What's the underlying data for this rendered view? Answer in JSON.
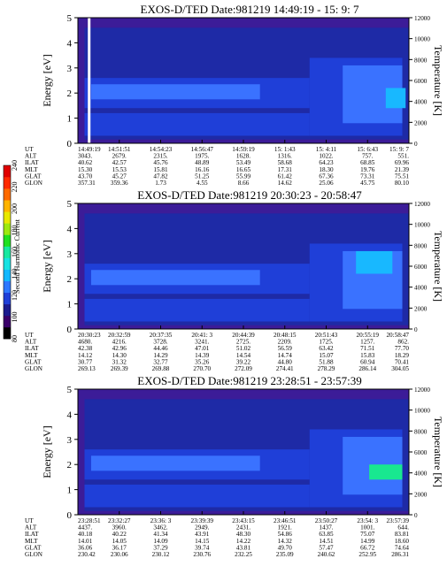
{
  "colorbar": {
    "label": "Second Harmonic Current",
    "ticks": [
      "80",
      "100",
      "120",
      "140",
      "160",
      "180",
      "200",
      "220",
      "240"
    ],
    "colors": [
      "#000000",
      "#3a0069",
      "#1b1b8e",
      "#1f3fd8",
      "#2e78ff",
      "#12b8ff",
      "#18e2e2",
      "#18e8a0",
      "#20e020",
      "#9ee810",
      "#e8e800",
      "#ffb400",
      "#ff6a00",
      "#ff2a00",
      "#e00000"
    ]
  },
  "chart_data": [
    {
      "type": "heatmap",
      "title": "EXOS-D/TED   Date:981219  14:49:19 - 15: 9: 7",
      "ylabel": "Energy [eV]",
      "y2label": "Temperature [K]",
      "ylim": [
        0,
        5
      ],
      "y2lim": [
        0,
        12000
      ],
      "yticks": [
        "0",
        "1",
        "2",
        "3",
        "4",
        "5"
      ],
      "y2ticks": [
        "0",
        "2000",
        "4000",
        "6000",
        "8000",
        "10000",
        "12000"
      ],
      "ephemeris_labels": [
        "UT",
        "ALT",
        "ILAT",
        "MLT",
        "GLAT",
        "GLON"
      ],
      "ephemeris": [
        [
          "14:49:19",
          "3043.",
          "40.62",
          "15.30",
          "43.70",
          "357.31"
        ],
        [
          "14:51:51",
          "2679.",
          "42.57",
          "15.53",
          "45.27",
          "359.36"
        ],
        [
          "14:54:23",
          "2315.",
          "45.76",
          "15.81",
          "47.82",
          "1.73"
        ],
        [
          "14:56:47",
          "1975.",
          "48.89",
          "16.16",
          "51.25",
          "4.55"
        ],
        [
          "14:59:19",
          "1628.",
          "53.49",
          "16.65",
          "55.99",
          "8.66"
        ],
        [
          "15: 1:43",
          "1316.",
          "58.68",
          "17.31",
          "61.42",
          "14.62"
        ],
        [
          "15: 4:11",
          "1022.",
          "64.23",
          "18.30",
          "67.36",
          "25.06"
        ],
        [
          "15: 6:43",
          "757.",
          "68.85",
          "19.76",
          "73.31",
          "45.75"
        ],
        [
          "15: 9: 7",
          "551.",
          "69.96",
          "21.39",
          "75.51",
          "80.10"
        ]
      ]
    },
    {
      "type": "heatmap",
      "title": "EXOS-D/TED   Date:981219  20:30:23 - 20:58:47",
      "ylabel": "Energy [eV]",
      "y2label": "Temperature [K]",
      "ylim": [
        0,
        5
      ],
      "y2lim": [
        0,
        12000
      ],
      "yticks": [
        "0",
        "1",
        "2",
        "3",
        "4",
        "5"
      ],
      "y2ticks": [
        "0",
        "2000",
        "4000",
        "6000",
        "8000",
        "10000",
        "12000"
      ],
      "ephemeris_labels": [
        "UT",
        "ALT",
        "ILAT",
        "MLT",
        "GLAT",
        "GLON"
      ],
      "ephemeris": [
        [
          "20:30:23",
          "4680.",
          "42.38",
          "14.12",
          "30.77",
          "269.13"
        ],
        [
          "20:32:59",
          "4216.",
          "42.96",
          "14.30",
          "31.32",
          "269.39"
        ],
        [
          "20:37:35",
          "3728.",
          "44.46",
          "14.29",
          "32.77",
          "269.88"
        ],
        [
          "20:41: 3",
          "3241.",
          "47.01",
          "14.39",
          "35.26",
          "270.70"
        ],
        [
          "20:44:39",
          "2725.",
          "51.02",
          "14.54",
          "39.22",
          "272.09"
        ],
        [
          "20:48:15",
          "2209.",
          "56.59",
          "14.74",
          "44.80",
          "274.41"
        ],
        [
          "20:51:43",
          "1725.",
          "63.42",
          "15.07",
          "51.88",
          "278.29"
        ],
        [
          "20:55:19",
          "1257.",
          "71.51",
          "15.83",
          "60.94",
          "286.14"
        ],
        [
          "20:58:47",
          "862.",
          "77.70",
          "18.29",
          "70.41",
          "304.05"
        ]
      ]
    },
    {
      "type": "heatmap",
      "title": "EXOS-D/TED   Date:981219  23:28:51 - 23:57:39",
      "ylabel": "Energy [eV]",
      "y2label": "Temperature [K]",
      "ylim": [
        0,
        5
      ],
      "y2lim": [
        0,
        12000
      ],
      "yticks": [
        "0",
        "1",
        "2",
        "3",
        "4",
        "5"
      ],
      "y2ticks": [
        "0",
        "2000",
        "4000",
        "6000",
        "8000",
        "10000",
        "12000"
      ],
      "ephemeris_labels": [
        "UT",
        "ALT",
        "ILAT",
        "MLT",
        "GLAT",
        "GLON"
      ],
      "ephemeris": [
        [
          "23:28:51",
          "4437.",
          "40.18",
          "14.01",
          "36.06",
          "230.42"
        ],
        [
          "23:32:27",
          "3960.",
          "40.22",
          "14.05",
          "36.17",
          "230.06"
        ],
        [
          "23:36: 3",
          "3462.",
          "41.34",
          "14.09",
          "37.29",
          "230.12"
        ],
        [
          "23:39:39",
          "2949.",
          "43.91",
          "14.15",
          "39.74",
          "230.76"
        ],
        [
          "23:43:15",
          "2431.",
          "48.30",
          "14.22",
          "43.81",
          "232.25"
        ],
        [
          "23:46:51",
          "1921.",
          "54.86",
          "14.32",
          "49.70",
          "235.09"
        ],
        [
          "23:50:27",
          "1437.",
          "63.85",
          "14.51",
          "57.47",
          "240.62"
        ],
        [
          "23:54: 3",
          "1001.",
          "75.07",
          "14.99",
          "66.72",
          "252.95"
        ],
        [
          "23:57:39",
          "644.",
          "83.81",
          "18.60",
          "74.64",
          "286.31"
        ]
      ]
    }
  ]
}
